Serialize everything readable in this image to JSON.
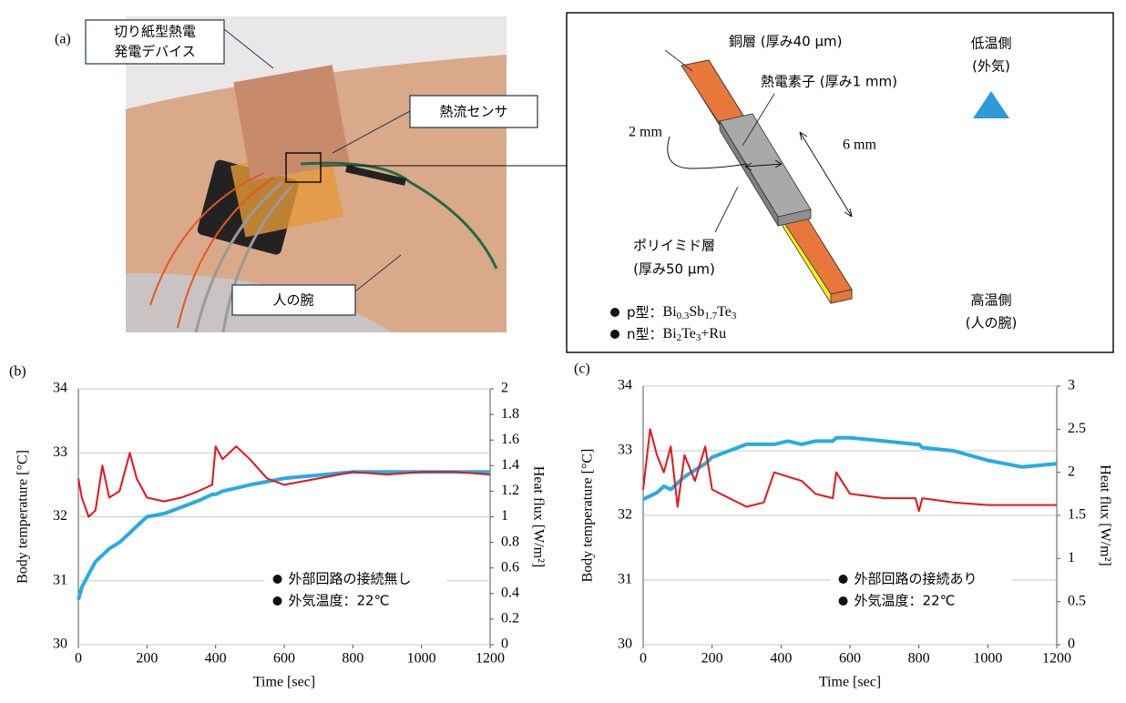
{
  "panel_a": {
    "label": "(a)",
    "photo_labels": {
      "device": [
        "切り紙型熱電",
        "発電デバイス"
      ],
      "sensor": "熱流センサ",
      "arm": "人の腕"
    },
    "diagram": {
      "copper": "銅層 (厚み40 µm)",
      "element": "熱電素子 (厚み1 mm)",
      "width": "2 mm",
      "length": "6 mm",
      "polyimide": [
        "ポリイミド層",
        "(厚み50 µm)"
      ],
      "cold": [
        "低温側",
        "(外気)"
      ],
      "hot": [
        "高温側",
        "(人の腕)"
      ],
      "p_type": {
        "label": "p型：",
        "formula": [
          "Bi",
          "0.3",
          "Sb",
          "1.7",
          "Te",
          "3"
        ]
      },
      "n_type": {
        "label": "n型：",
        "formula": [
          "Bi",
          "2",
          "Te",
          "3",
          "+Ru"
        ]
      }
    }
  },
  "chart_data": [
    {
      "type": "line",
      "label": "(b)",
      "xlabel": "Time [sec]",
      "ylabel": "Body temperature [°C]",
      "y2label": "Heat flux [W/m²]",
      "x": [
        0,
        10,
        30,
        50,
        70,
        90,
        120,
        150,
        170,
        200,
        250,
        300,
        350,
        390,
        400,
        420,
        460,
        500,
        550,
        600,
        700,
        800,
        900,
        1000,
        1100,
        1200
      ],
      "xlim": [
        0,
        1200
      ],
      "xticks": [
        0,
        200,
        400,
        600,
        800,
        1000,
        1200
      ],
      "ylim": [
        30,
        34
      ],
      "yticks": [
        30,
        31,
        32,
        33,
        34
      ],
      "y2lim": [
        0,
        2
      ],
      "y2ticks": [
        0,
        0.2,
        0.4,
        0.6,
        0.8,
        1,
        1.2,
        1.4,
        1.6,
        1.8,
        2
      ],
      "grid": true,
      "annotations": [
        "外部回路の接続無し",
        "外気温度：22℃"
      ],
      "series": [
        {
          "color": "#29abe2",
          "values": [
            30.7,
            30.9,
            31.1,
            31.3,
            31.4,
            31.5,
            31.6,
            31.75,
            31.85,
            32.0,
            32.05,
            32.15,
            32.25,
            32.35,
            32.35,
            32.4,
            32.45,
            32.5,
            32.55,
            32.6,
            32.65,
            32.7,
            32.7,
            32.7,
            32.7,
            32.7
          ]
        },
        {
          "color": "#e5141b",
          "axis": "y2",
          "values": [
            1.3,
            1.15,
            1.0,
            1.05,
            1.4,
            1.15,
            1.2,
            1.5,
            1.3,
            1.15,
            1.12,
            1.15,
            1.2,
            1.25,
            1.55,
            1.45,
            1.55,
            1.45,
            1.3,
            1.25,
            1.3,
            1.35,
            1.33,
            1.35,
            1.35,
            1.33
          ]
        }
      ]
    },
    {
      "type": "line",
      "label": "(c)",
      "xlabel": "Time [sec]",
      "ylabel": "Body temperature [°C]",
      "y2label": "Heat flux [W/m²]",
      "x": [
        0,
        20,
        40,
        60,
        80,
        100,
        120,
        150,
        180,
        200,
        250,
        300,
        350,
        380,
        420,
        460,
        500,
        550,
        560,
        600,
        700,
        790,
        800,
        810,
        900,
        1000,
        1100,
        1200
      ],
      "xlim": [
        0,
        1200
      ],
      "xticks": [
        0,
        200,
        400,
        600,
        800,
        1000,
        1200
      ],
      "ylim": [
        30,
        34
      ],
      "yticks": [
        30,
        31,
        32,
        33,
        34
      ],
      "y2lim": [
        0,
        3
      ],
      "y2ticks": [
        0,
        0.5,
        1,
        1.5,
        2,
        2.5,
        3
      ],
      "grid": true,
      "annotations": [
        "外部回路の接続あり",
        "外気温度：22℃"
      ],
      "series": [
        {
          "color": "#29abe2",
          "values": [
            32.25,
            32.3,
            32.35,
            32.45,
            32.4,
            32.5,
            32.6,
            32.7,
            32.8,
            32.9,
            33.0,
            33.1,
            33.1,
            33.1,
            33.15,
            33.1,
            33.15,
            33.15,
            33.2,
            33.2,
            33.15,
            33.1,
            33.1,
            33.05,
            33.0,
            32.85,
            32.75,
            32.8
          ]
        },
        {
          "color": "#e5141b",
          "axis": "y2",
          "values": [
            1.8,
            2.5,
            2.2,
            2.0,
            2.3,
            1.6,
            2.2,
            1.9,
            2.3,
            1.8,
            1.7,
            1.6,
            1.65,
            2.0,
            1.95,
            1.9,
            1.75,
            1.7,
            2.0,
            1.75,
            1.7,
            1.7,
            1.55,
            1.7,
            1.65,
            1.62,
            1.62,
            1.62
          ]
        }
      ]
    }
  ]
}
